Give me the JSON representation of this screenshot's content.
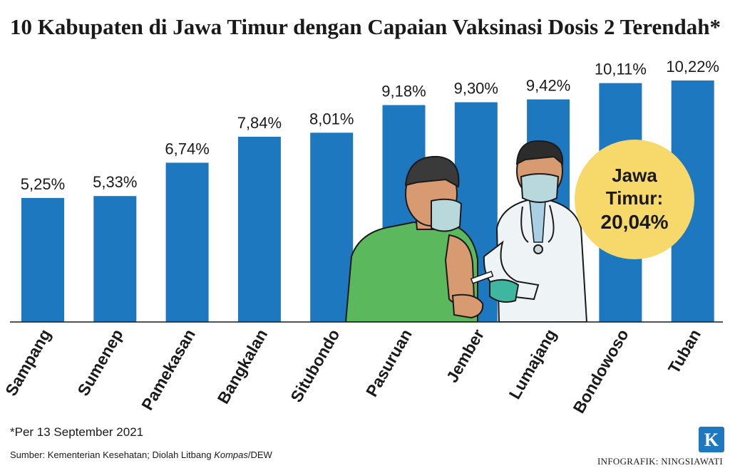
{
  "title": "10 Kabupaten di Jawa Timur dengan Capaian Vaksinasi Dosis 2 Terendah*",
  "chart_data": {
    "type": "bar",
    "categories": [
      "Sampang",
      "Sumenep",
      "Pamekasan",
      "Bangkalan",
      "Situbondo",
      "Pasuruan",
      "Jember",
      "Lumajang",
      "Bondowoso",
      "Tuban"
    ],
    "values": [
      5.25,
      5.33,
      6.74,
      7.84,
      8.01,
      9.18,
      9.3,
      9.42,
      10.11,
      10.22
    ],
    "value_labels": [
      "5,25%",
      "5,33%",
      "6,74%",
      "7,84%",
      "8,01%",
      "9,18%",
      "9,30%",
      "9,42%",
      "10,11%",
      "10,22%"
    ],
    "title": "10 Kabupaten di Jawa Timur dengan Capaian Vaksinasi Dosis 2 Terendah*",
    "bar_color": "#1e78c0",
    "ylim": [
      0,
      10.22
    ],
    "grid": false
  },
  "highlight": {
    "line1": "Jawa",
    "line2": "Timur:",
    "value": "20,04%",
    "color": "#f7d86a"
  },
  "footnote": "*Per 13 September 2021",
  "source": {
    "prefix": "Sumber: Kementerian Kesehatan; Diolah Litbang ",
    "italic": "Kompas",
    "suffix": "/DEW"
  },
  "credit": "INFOGRAFIK: NINGSIAWATI",
  "logo_letter": "K",
  "logo_color": "#1e78c0",
  "illustration_icon": "vaccination-illustration"
}
